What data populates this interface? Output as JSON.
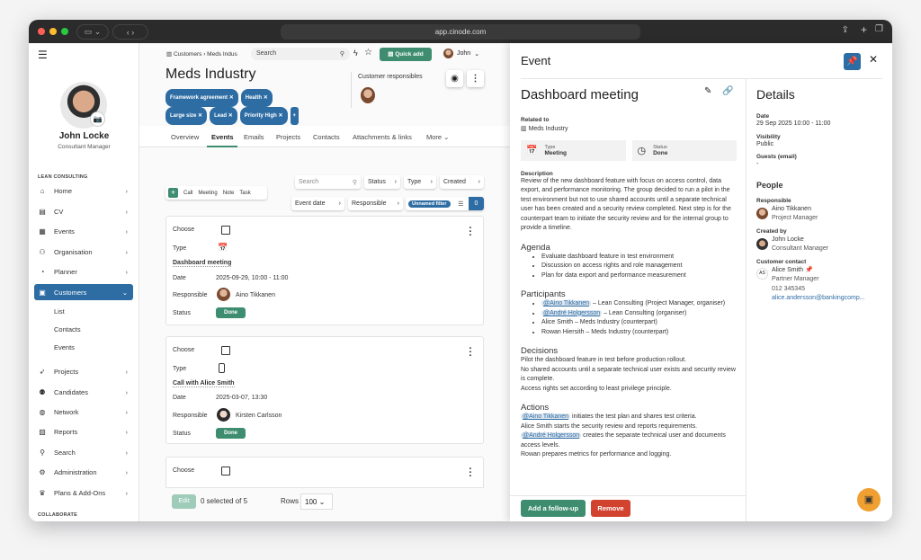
{
  "browser": {
    "url": "app.cinode.com"
  },
  "sidebar": {
    "user_name": "John Locke",
    "user_role": "Consultant Manager",
    "section1": "LEAN CONSULTING",
    "section2": "COLLABORATE",
    "items": [
      {
        "label": "Home",
        "icon": "home-icon"
      },
      {
        "label": "CV",
        "icon": "cv-icon"
      },
      {
        "label": "Events",
        "icon": "calendar-icon"
      },
      {
        "label": "Organisation",
        "icon": "organisation-icon"
      },
      {
        "label": "Planner",
        "icon": "planner-icon"
      },
      {
        "label": "Customers",
        "icon": "briefcase-icon"
      },
      {
        "label": "Projects",
        "icon": "rocket-icon"
      },
      {
        "label": "Candidates",
        "icon": "candidates-icon"
      },
      {
        "label": "Network",
        "icon": "globe-icon"
      },
      {
        "label": "Reports",
        "icon": "reports-icon"
      },
      {
        "label": "Search",
        "icon": "search-icon"
      },
      {
        "label": "Administration",
        "icon": "gear-icon"
      },
      {
        "label": "Plans & Add-Ons",
        "icon": "crown-icon"
      }
    ],
    "subitems": [
      "List",
      "Contacts",
      "Events"
    ]
  },
  "header": {
    "breadcrumb": [
      "Customers",
      "Meds Indus"
    ],
    "search_placeholder": "Search",
    "quick_add": "Quick add",
    "user": "John"
  },
  "customer": {
    "title": "Meds Industry",
    "tags": [
      "Framework agreement",
      "Health",
      "Large size",
      "Lead",
      "Priority High"
    ],
    "responsibles_label": "Customer responsibles"
  },
  "tabs": [
    "Overview",
    "Events",
    "Emails",
    "Projects",
    "Contacts",
    "Attachments & links",
    "More"
  ],
  "toolbar": {
    "add_types": [
      "Call",
      "Meeting",
      "Note",
      "Task"
    ],
    "search_placeholder": "Search",
    "filters": [
      "Status",
      "Type",
      "Created",
      "Event date",
      "Responsible"
    ],
    "saved_filter": "Unnamed filter",
    "filter_count": "0"
  },
  "events": [
    {
      "choose": "Choose",
      "type_label": "Type",
      "type_icon": "calendar-icon",
      "name": "Dashboard meeting",
      "date_label": "Date",
      "date": "2025-09-29, 10:00 - 11:00",
      "responsible_label": "Responsible",
      "responsible": "Aino Tikkanen",
      "status_label": "Status",
      "status": "Done"
    },
    {
      "choose": "Choose",
      "type_label": "Type",
      "type_icon": "phone-icon",
      "name": "Call with Alice Smith",
      "date_label": "Date",
      "date": "2025-03-07, 13:30",
      "responsible_label": "Responsible",
      "responsible": "Kirsten Carlsson",
      "status_label": "Status",
      "status": "Done"
    },
    {
      "choose": "Choose"
    }
  ],
  "footer": {
    "edit": "Edit",
    "selected": "0 selected of 5",
    "rows_label": "Rows",
    "rows": "100"
  },
  "panel": {
    "header": "Event",
    "title": "Dashboard meeting",
    "related_label": "Related to",
    "related": "Meds Industry",
    "type_label": "Type",
    "type": "Meeting",
    "status_label": "Status",
    "status": "Done",
    "description_label": "Description",
    "description": "Review of the new dashboard feature with focus on access control, data export, and performance monitoring. The group decided to run a pilot in the test environment but not to use shared accounts until a separate technical user has been created and a security review completed. Next step is for the counterpart team to initiate the security review and for the internal group to provide a timeline.",
    "agenda_label": "Agenda",
    "agenda": [
      "Evaluate dashboard feature in test environment",
      "Discussion on access rights and role management",
      "Plan for data export and performance measurement"
    ],
    "participants_label": "Participants",
    "participants": [
      {
        "mention": "@Aino Tikkanen",
        "text": " – Lean Consulting (Project Manager, organiser)"
      },
      {
        "mention": "@André Holgersson",
        "text": " – Lean Consulting (organiser)"
      },
      {
        "mention": "",
        "text": "Alice Smith – Meds Industry (counterpart)"
      },
      {
        "mention": "",
        "text": "Rowan Hiersith – Meds Industry (counterpart)"
      }
    ],
    "decisions_label": "Decisions",
    "decisions": [
      "Pilot the dashboard feature in test before production rollout.",
      "No shared accounts until a separate technical user exists and security review is complete.",
      "Access rights set according to least privilege principle."
    ],
    "actions_label": "Actions",
    "actions": [
      {
        "mention": "@Aino Tikkanen",
        "text": " initiates the test plan and shares test criteria."
      },
      {
        "mention": "",
        "text": "Alice Smith starts the security review and reports requirements."
      },
      {
        "mention": "@André Holgersson",
        "text": " creates the separate technical user and documents access levels."
      },
      {
        "mention": "",
        "text": "Rowan prepares metrics for performance and logging."
      }
    ],
    "follow_up": "Add a follow-up",
    "remove": "Remove",
    "details": {
      "title": "Details",
      "date_label": "Date",
      "date": "29 Sep 2025 10:00 - 11:00",
      "visibility_label": "Visibility",
      "visibility": "Public",
      "guests_label": "Guests (email)",
      "guests": "-",
      "people_title": "People",
      "responsible_label": "Responsible",
      "responsible": {
        "name": "Aino Tikkanen",
        "role": "Project Manager"
      },
      "created_label": "Created by",
      "created_by": {
        "name": "John Locke",
        "role": "Consultant Manager"
      },
      "contact_label": "Customer contact",
      "contact": {
        "initials": "AS",
        "name": "Alice Smith",
        "role": "Partner Manager",
        "phone": "012 345345",
        "email": "alice.andersson@bankingcomp..."
      }
    }
  },
  "colors": {
    "primary": "#2e6da4",
    "green": "#3e8d70",
    "red": "#d2432f",
    "chat": "#f0a030"
  }
}
